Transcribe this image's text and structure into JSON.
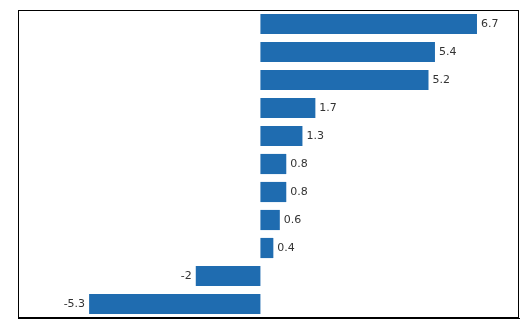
{
  "chart_data": {
    "type": "bar",
    "orientation": "horizontal",
    "categories": [
      null,
      null,
      null,
      null,
      null,
      null,
      null,
      null,
      null,
      null,
      null
    ],
    "values": [
      6.7,
      5.4,
      5.2,
      1.7,
      1.3,
      0.8,
      0.8,
      0.6,
      0.4,
      -2.0,
      -5.3
    ],
    "color": "#1F6CB0",
    "xlim": [
      -7.5,
      8.0
    ],
    "xticks": [],
    "grid": false,
    "data_labels": true,
    "tick_labels": false
  }
}
